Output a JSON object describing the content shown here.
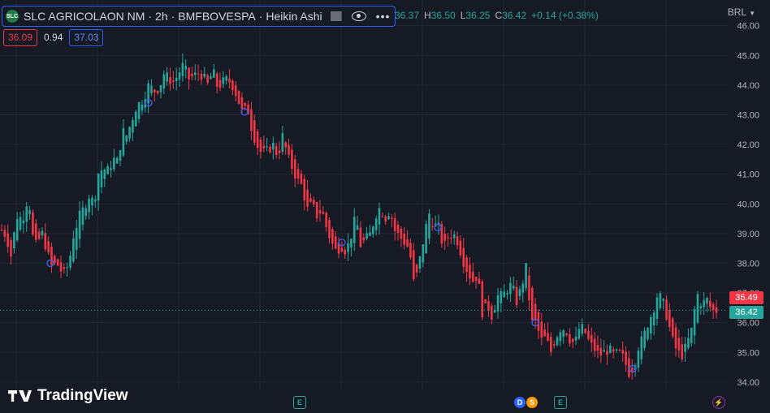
{
  "header": {
    "symbol": "SLC AGRICOLAON NM",
    "interval": "2h",
    "exchange": "BMFBOVESPA",
    "chart_style": "Heikin Ashi",
    "logo_text": "SLC",
    "ohlc": {
      "o_label": "O",
      "o": "36.37",
      "h_label": "H",
      "h": "36.50",
      "l_label": "L",
      "l": "36.25",
      "c_label": "C",
      "c": "36.42",
      "change": "+0.14 (+0.38%)"
    }
  },
  "indicator": {
    "bid": "36.09",
    "spread": "0.94",
    "ask": "37.03"
  },
  "currency": "BRL",
  "price_tags": {
    "previous": "36.49",
    "last": "36.42"
  },
  "axis_hidden_label": "37.00",
  "brand": "TradingView",
  "events": {
    "earnings": "E",
    "dividends": "D",
    "split": "S",
    "bolt": "⚡"
  },
  "colors": {
    "up": "#26a69a",
    "down": "#f23645",
    "bg": "#161a25",
    "grid": "#232633",
    "accent": "#2962ff"
  },
  "chart_data": {
    "type": "candlestick",
    "title": "SLC AGRICOLAON NM · 2h · BMFBOVESPA · Heikin Ashi",
    "ylim": [
      33.75,
      46.1
    ],
    "yticks": [
      34,
      35,
      36,
      37,
      38,
      39,
      40,
      41,
      42,
      43,
      44,
      45,
      46
    ],
    "last_price": 36.42,
    "n_bars": 230,
    "path": [
      [
        0,
        39.2
      ],
      [
        8,
        38.9
      ],
      [
        14,
        38.2
      ],
      [
        20,
        39.6
      ],
      [
        28,
        39.5
      ],
      [
        35,
        40.3
      ],
      [
        42,
        38.5
      ],
      [
        52,
        39.0
      ],
      [
        58,
        38.4
      ],
      [
        63,
        37.9
      ],
      [
        70,
        38.0
      ],
      [
        78,
        37.6
      ],
      [
        85,
        38.0
      ],
      [
        90,
        38.9
      ],
      [
        98,
        39.6
      ],
      [
        104,
        39.9
      ],
      [
        110,
        40.3
      ],
      [
        116,
        40.0
      ],
      [
        120,
        41.0
      ],
      [
        127,
        41.2
      ],
      [
        132,
        41.1
      ],
      [
        140,
        41.5
      ],
      [
        146,
        41.4
      ],
      [
        150,
        42.5
      ],
      [
        156,
        42.3
      ],
      [
        162,
        42.8
      ],
      [
        168,
        43.3
      ],
      [
        176,
        43.5
      ],
      [
        183,
        44.0
      ],
      [
        190,
        43.8
      ],
      [
        196,
        43.9
      ],
      [
        202,
        44.4
      ],
      [
        208,
        44.2
      ],
      [
        214,
        44.1
      ],
      [
        220,
        44.4
      ],
      [
        226,
        44.7
      ],
      [
        232,
        44.2
      ],
      [
        238,
        44.3
      ],
      [
        244,
        44.4
      ],
      [
        250,
        44.3
      ],
      [
        256,
        44.0
      ],
      [
        262,
        44.5
      ],
      [
        268,
        43.9
      ],
      [
        274,
        44.1
      ],
      [
        280,
        44.2
      ],
      [
        286,
        44.0
      ],
      [
        292,
        43.6
      ],
      [
        298,
        43.1
      ],
      [
        305,
        43.2
      ],
      [
        310,
        42.5
      ],
      [
        316,
        42.0
      ],
      [
        322,
        41.7
      ],
      [
        330,
        41.8
      ],
      [
        336,
        42.0
      ],
      [
        342,
        41.6
      ],
      [
        348,
        42.3
      ],
      [
        354,
        41.6
      ],
      [
        360,
        41.2
      ],
      [
        366,
        40.8
      ],
      [
        372,
        40.6
      ],
      [
        378,
        39.8
      ],
      [
        384,
        40.0
      ],
      [
        390,
        39.6
      ],
      [
        396,
        39.8
      ],
      [
        402,
        39.2
      ],
      [
        408,
        38.7
      ],
      [
        414,
        38.4
      ],
      [
        420,
        38.6
      ],
      [
        426,
        38.4
      ],
      [
        432,
        38.9
      ],
      [
        438,
        39.6
      ],
      [
        444,
        38.6
      ],
      [
        450,
        38.8
      ],
      [
        456,
        39.0
      ],
      [
        462,
        39.6
      ],
      [
        468,
        39.9
      ],
      [
        474,
        39.5
      ],
      [
        480,
        39.8
      ],
      [
        486,
        39.1
      ],
      [
        492,
        38.9
      ],
      [
        498,
        38.7
      ],
      [
        504,
        38.5
      ],
      [
        510,
        37.2
      ],
      [
        516,
        38.0
      ],
      [
        522,
        38.9
      ],
      [
        528,
        39.7
      ],
      [
        534,
        39.3
      ],
      [
        540,
        39.2
      ],
      [
        546,
        38.5
      ],
      [
        552,
        38.9
      ],
      [
        558,
        39.0
      ],
      [
        564,
        38.7
      ],
      [
        570,
        38.1
      ],
      [
        576,
        37.7
      ],
      [
        582,
        37.4
      ],
      [
        588,
        37.6
      ],
      [
        594,
        36.3
      ],
      [
        600,
        36.6
      ],
      [
        606,
        36.2
      ],
      [
        612,
        36.9
      ],
      [
        618,
        36.9
      ],
      [
        624,
        37.1
      ],
      [
        630,
        37.3
      ],
      [
        636,
        36.7
      ],
      [
        642,
        37.2
      ],
      [
        648,
        37.9
      ],
      [
        654,
        36.0
      ],
      [
        660,
        36.0
      ],
      [
        666,
        35.4
      ],
      [
        672,
        35.5
      ],
      [
        678,
        35.0
      ],
      [
        684,
        35.5
      ],
      [
        690,
        35.8
      ],
      [
        696,
        35.8
      ],
      [
        702,
        35.4
      ],
      [
        708,
        35.3
      ],
      [
        714,
        35.9
      ],
      [
        720,
        35.7
      ],
      [
        726,
        35.3
      ],
      [
        732,
        35.1
      ],
      [
        738,
        34.9
      ],
      [
        744,
        35.0
      ],
      [
        750,
        35.1
      ],
      [
        756,
        34.9
      ],
      [
        762,
        35.0
      ],
      [
        768,
        34.8
      ],
      [
        774,
        34.3
      ],
      [
        780,
        34.5
      ],
      [
        786,
        35.2
      ],
      [
        792,
        35.5
      ],
      [
        798,
        36.0
      ],
      [
        804,
        36.4
      ],
      [
        810,
        37.0
      ],
      [
        816,
        36.7
      ],
      [
        822,
        36.1
      ],
      [
        828,
        35.4
      ],
      [
        834,
        35.0
      ],
      [
        840,
        34.9
      ],
      [
        846,
        35.3
      ],
      [
        852,
        35.8
      ],
      [
        858,
        37.0
      ],
      [
        864,
        36.6
      ],
      [
        870,
        36.8
      ],
      [
        876,
        36.4
      ],
      [
        882,
        36.4
      ]
    ],
    "markers": [
      [
        62,
        38.0
      ],
      [
        183,
        43.4
      ],
      [
        301,
        43.1
      ],
      [
        421,
        38.7
      ],
      [
        539,
        39.2
      ],
      [
        659,
        36.0
      ],
      [
        779,
        34.45
      ]
    ]
  }
}
